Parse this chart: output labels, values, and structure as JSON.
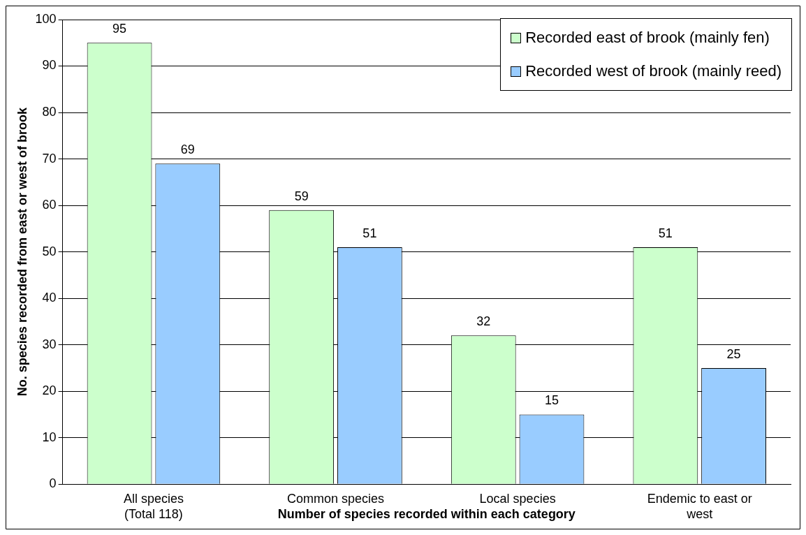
{
  "chart_data": {
    "type": "bar",
    "xlabel": "Number of species recorded within each category",
    "ylabel": "No. species recorded from east or west of brook",
    "categories": [
      "All species\n(Total 118)",
      "Common species",
      "Local species",
      "Endemic to east or\nwest"
    ],
    "series": [
      {
        "name": "Recorded east of brook (mainly fen)",
        "color": "#ccffcc",
        "values": [
          95,
          59,
          32,
          51
        ]
      },
      {
        "name": "Recorded west of brook (mainly reed)",
        "color": "#99ccff",
        "values": [
          69,
          51,
          15,
          25
        ]
      }
    ],
    "ylim": [
      0,
      100
    ],
    "yticks": [
      0,
      10,
      20,
      30,
      40,
      50,
      60,
      70,
      80,
      90,
      100
    ],
    "grid": "y",
    "legend": "top right",
    "data_labels": true
  }
}
